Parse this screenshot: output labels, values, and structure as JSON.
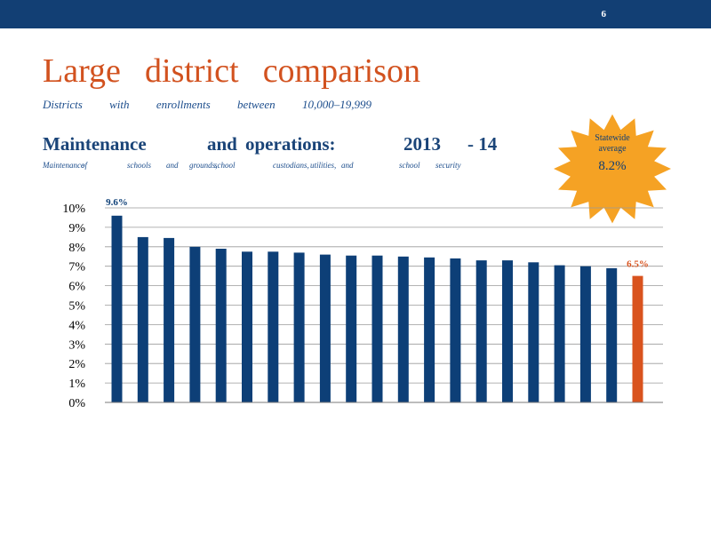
{
  "slide": {
    "page_number": "6",
    "title_words": [
      "Large",
      "district",
      "comparison"
    ],
    "subtitle_words": [
      "Districts",
      "with",
      "enrollments",
      "between",
      "10,000",
      "19,999"
    ],
    "heading_parts": [
      "Maintenance",
      "and",
      "operations:",
      "2013",
      "- 14"
    ],
    "description_parts": [
      "Maintenance",
      "of",
      "schools",
      "and",
      "grounds,",
      "school",
      "custodians,",
      "utilities,",
      "and",
      "school",
      "security"
    ]
  },
  "statewide": {
    "label_line1": "Statewide",
    "label_line2": "average",
    "value": "8.2%"
  },
  "colors": {
    "bar": "#0d3f77",
    "highlight": "#d9531e",
    "title": "#d2521f",
    "text": "#1c4d8c",
    "banner": "#123f74",
    "burst": "#f5a224"
  },
  "chart_data": {
    "type": "bar",
    "ylim": [
      0,
      10
    ],
    "y_ticks": [
      "0%",
      "1%",
      "2%",
      "3%",
      "4%",
      "5%",
      "6%",
      "7%",
      "8%",
      "9%",
      "10%"
    ],
    "values": [
      9.6,
      8.5,
      8.45,
      8.0,
      7.9,
      7.75,
      7.75,
      7.7,
      7.6,
      7.55,
      7.55,
      7.5,
      7.45,
      7.4,
      7.3,
      7.3,
      7.2,
      7.05,
      7.0,
      6.9,
      6.5
    ],
    "highlight_index": 20,
    "data_labels": [
      {
        "index": 0,
        "text": "9.6%"
      },
      {
        "index": 20,
        "text": "6.5%"
      }
    ],
    "grid": true,
    "legend": "none"
  }
}
